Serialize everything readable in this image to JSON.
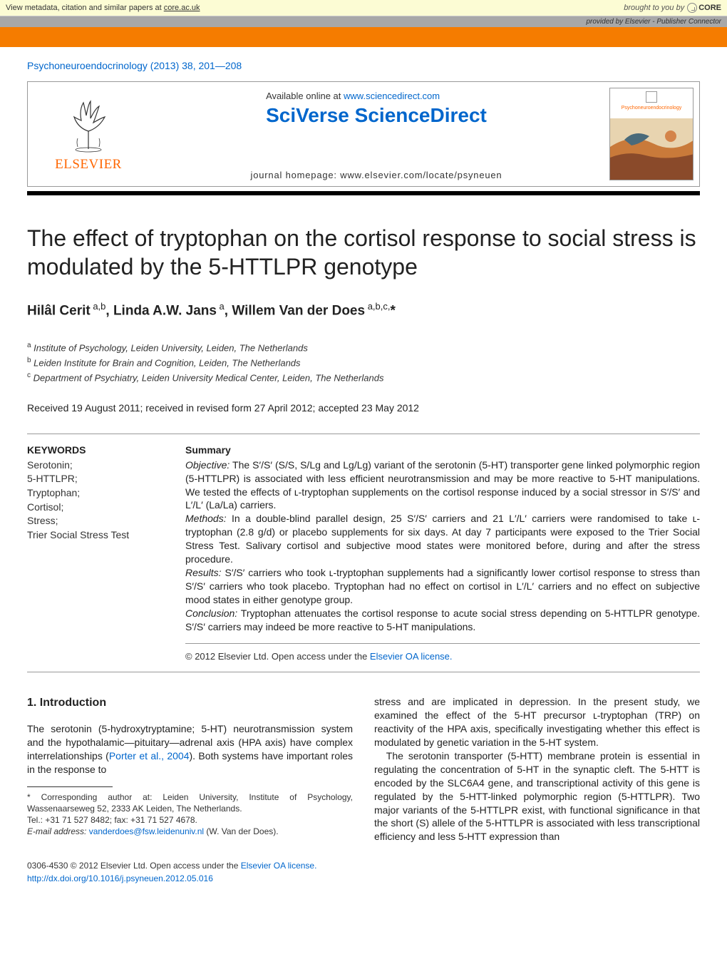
{
  "core_banner": {
    "view_text": "View metadata, citation and similar papers at ",
    "core_link": "core.ac.uk",
    "brought_by": "brought to you by",
    "core_logo": "CORE"
  },
  "provided_banner": "provided by Elsevier - Publisher Connector",
  "citation": "Psychoneuroendocrinology (2013) 38, 201—208",
  "header": {
    "elsevier": "ELSEVIER",
    "available_prefix": "Available online at ",
    "available_link": "www.sciencedirect.com",
    "sciverse": "SciVerse ScienceDirect",
    "homepage_prefix": "journal homepage: ",
    "homepage_link": "www.elsevier.com/locate/psyneuen",
    "cover_title": "Psychoneuroendocrinology"
  },
  "title": "The effect of tryptophan on the cortisol response to social stress is modulated by the 5-HTTLPR genotype",
  "authors_html": "Hilâl Cerit<sup> a,b</sup>, Linda A.W. Jans<sup> a</sup>, Willem Van der Does<sup> a,b,c,</sup>*",
  "affiliations": [
    {
      "sup": "a",
      "text": "Institute of Psychology, Leiden University, Leiden, The Netherlands"
    },
    {
      "sup": "b",
      "text": "Leiden Institute for Brain and Cognition, Leiden, The Netherlands"
    },
    {
      "sup": "c",
      "text": "Department of Psychiatry, Leiden University Medical Center, Leiden, The Netherlands"
    }
  ],
  "received": "Received 19 August 2011; received in revised form 27 April 2012; accepted 23 May 2012",
  "keywords": {
    "heading": "KEYWORDS",
    "items": [
      "Serotonin;",
      "5-HTTLPR;",
      "Tryptophan;",
      "Cortisol;",
      "Stress;",
      "Trier Social Stress Test"
    ]
  },
  "summary": {
    "heading": "Summary",
    "objective_label": "Objective:",
    "objective": "The S′/S′ (S/S, S/Lg and Lg/Lg) variant of the serotonin (5-HT) transporter gene linked polymorphic region (5-HTTLPR) is associated with less efficient neurotransmission and may be more reactive to 5-HT manipulations. We tested the effects of ʟ-tryptophan supplements on the cortisol response induced by a social stressor in S′/S′ and L′/L′ (La/La) carriers.",
    "methods_label": "Methods:",
    "methods": "In a double-blind parallel design, 25 S′/S′ carriers and 21 L′/L′ carriers were randomised to take ʟ-tryptophan (2.8 g/d) or placebo supplements for six days. At day 7 participants were exposed to the Trier Social Stress Test. Salivary cortisol and subjective mood states were monitored before, during and after the stress procedure.",
    "results_label": "Results:",
    "results": "S′/S′ carriers who took ʟ-tryptophan supplements had a significantly lower cortisol response to stress than S′/S′ carriers who took placebo. Tryptophan had no effect on cortisol in L′/L′ carriers and no effect on subjective mood states in either genotype group.",
    "conclusion_label": "Conclusion:",
    "conclusion": "Tryptophan attenuates the cortisol response to acute social stress depending on 5-HTTLPR genotype. S′/S′ carriers may indeed be more reactive to 5-HT manipulations.",
    "copyright_prefix": "© 2012 Elsevier Ltd. ",
    "copyright_open": "Open access under the ",
    "license_link": "Elsevier OA license."
  },
  "intro": {
    "heading": "1. Introduction",
    "col1_p1_pre": "The serotonin (5-hydroxytryptamine; 5-HT) neurotransmission system and the hypothalamic—pituitary—adrenal axis (HPA axis) have complex interrelationships (",
    "col1_p1_cite": "Porter et al., 2004",
    "col1_p1_post": "). Both systems have important roles in the response to",
    "col2_p1": "stress and are implicated in depression. In the present study, we examined the effect of the 5-HT precursor ʟ-tryptophan (TRP) on reactivity of the HPA axis, specifically investigating whether this effect is modulated by genetic variation in the 5-HT system.",
    "col2_p2": "The serotonin transporter (5-HTT) membrane protein is essential in regulating the concentration of 5-HT in the synaptic cleft. The 5-HTT is encoded by the SLC6A4 gene, and transcriptional activity of this gene is regulated by the 5-HTT-linked polymorphic region (5-HTTLPR). Two major variants of the 5-HTTLPR exist, with functional significance in that the short (S) allele of the 5-HTTLPR is associated with less transcriptional efficiency and less 5-HTT expression than"
  },
  "footnote": {
    "corresponding": "* Corresponding author at: Leiden University, Institute of Psychology, Wassenaarseweg 52, 2333 AK Leiden, The Netherlands.",
    "tel": "Tel.: +31 71 527 8482; fax: +31 71 527 4678.",
    "email_label": "E-mail address: ",
    "email": "vanderdoes@fsw.leidenuniv.nl",
    "email_suffix": " (W. Van der Does)."
  },
  "footer": {
    "issn": "0306-4530 © 2012 Elsevier Ltd. ",
    "open": "Open access under the ",
    "license_link": "Elsevier OA license.",
    "doi": "http://dx.doi.org/10.1016/j.psyneuen.2012.05.016"
  },
  "colors": {
    "orange": "#f57c00",
    "link_blue": "#0066cc",
    "elsevier_orange": "#ff6600",
    "banner_yellow": "#fcfcd4",
    "gray_banner": "#a8a8a8"
  }
}
